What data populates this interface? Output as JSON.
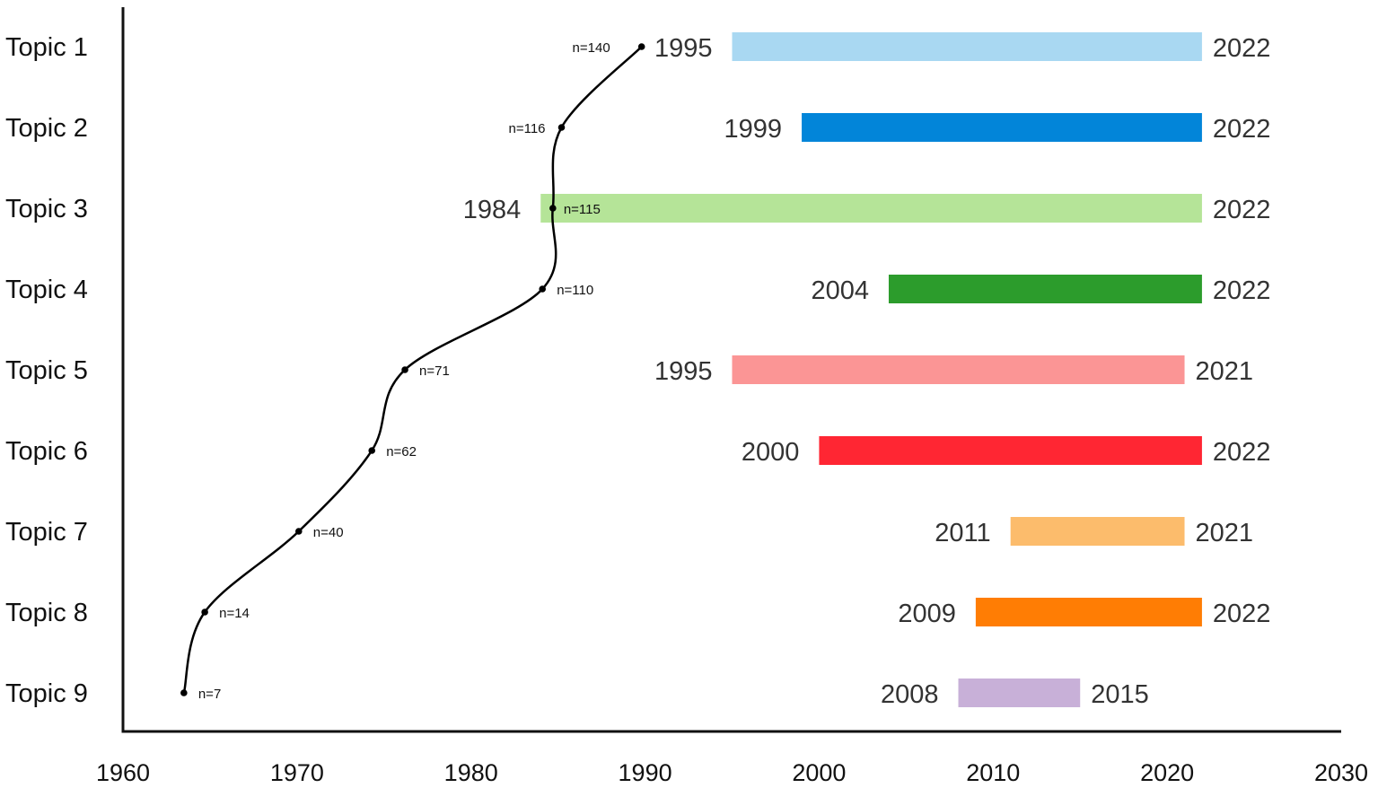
{
  "chart_data": {
    "type": "bar",
    "title": "",
    "xlabel": "",
    "ylabel": "",
    "xlim": [
      1960,
      2030
    ],
    "x_ticks": [
      1960,
      1970,
      1980,
      1990,
      2000,
      2010,
      2020,
      2030
    ],
    "categories": [
      "Topic 1",
      "Topic 2",
      "Topic 3",
      "Topic 4",
      "Topic 5",
      "Topic 6",
      "Topic 7",
      "Topic 8",
      "Topic 9"
    ],
    "ranges": [
      {
        "start": 1995,
        "end": 2022,
        "color": "#a9d8f2"
      },
      {
        "start": 1999,
        "end": 2022,
        "color": "#0285d9"
      },
      {
        "start": 1984,
        "end": 2022,
        "color": "#b5e498"
      },
      {
        "start": 2004,
        "end": 2022,
        "color": "#2c9c2c"
      },
      {
        "start": 1995,
        "end": 2021,
        "color": "#fb9595"
      },
      {
        "start": 2000,
        "end": 2022,
        "color": "#ff2633"
      },
      {
        "start": 2011,
        "end": 2021,
        "color": "#fcbc6c"
      },
      {
        "start": 2009,
        "end": 2022,
        "color": "#ff7d04"
      },
      {
        "start": 2008,
        "end": 2015,
        "color": "#c8b0d8"
      }
    ],
    "cumulative_line": {
      "x": [
        1989.8,
        1985.2,
        1984.7,
        1984.1,
        1976.2,
        1974.3,
        1970.1,
        1964.7,
        1963.5
      ],
      "labels": [
        "n=140",
        "n=116",
        "n=115",
        "n=110",
        "n=71",
        "n=62",
        "n=40",
        "n=14",
        "n=7"
      ]
    }
  }
}
